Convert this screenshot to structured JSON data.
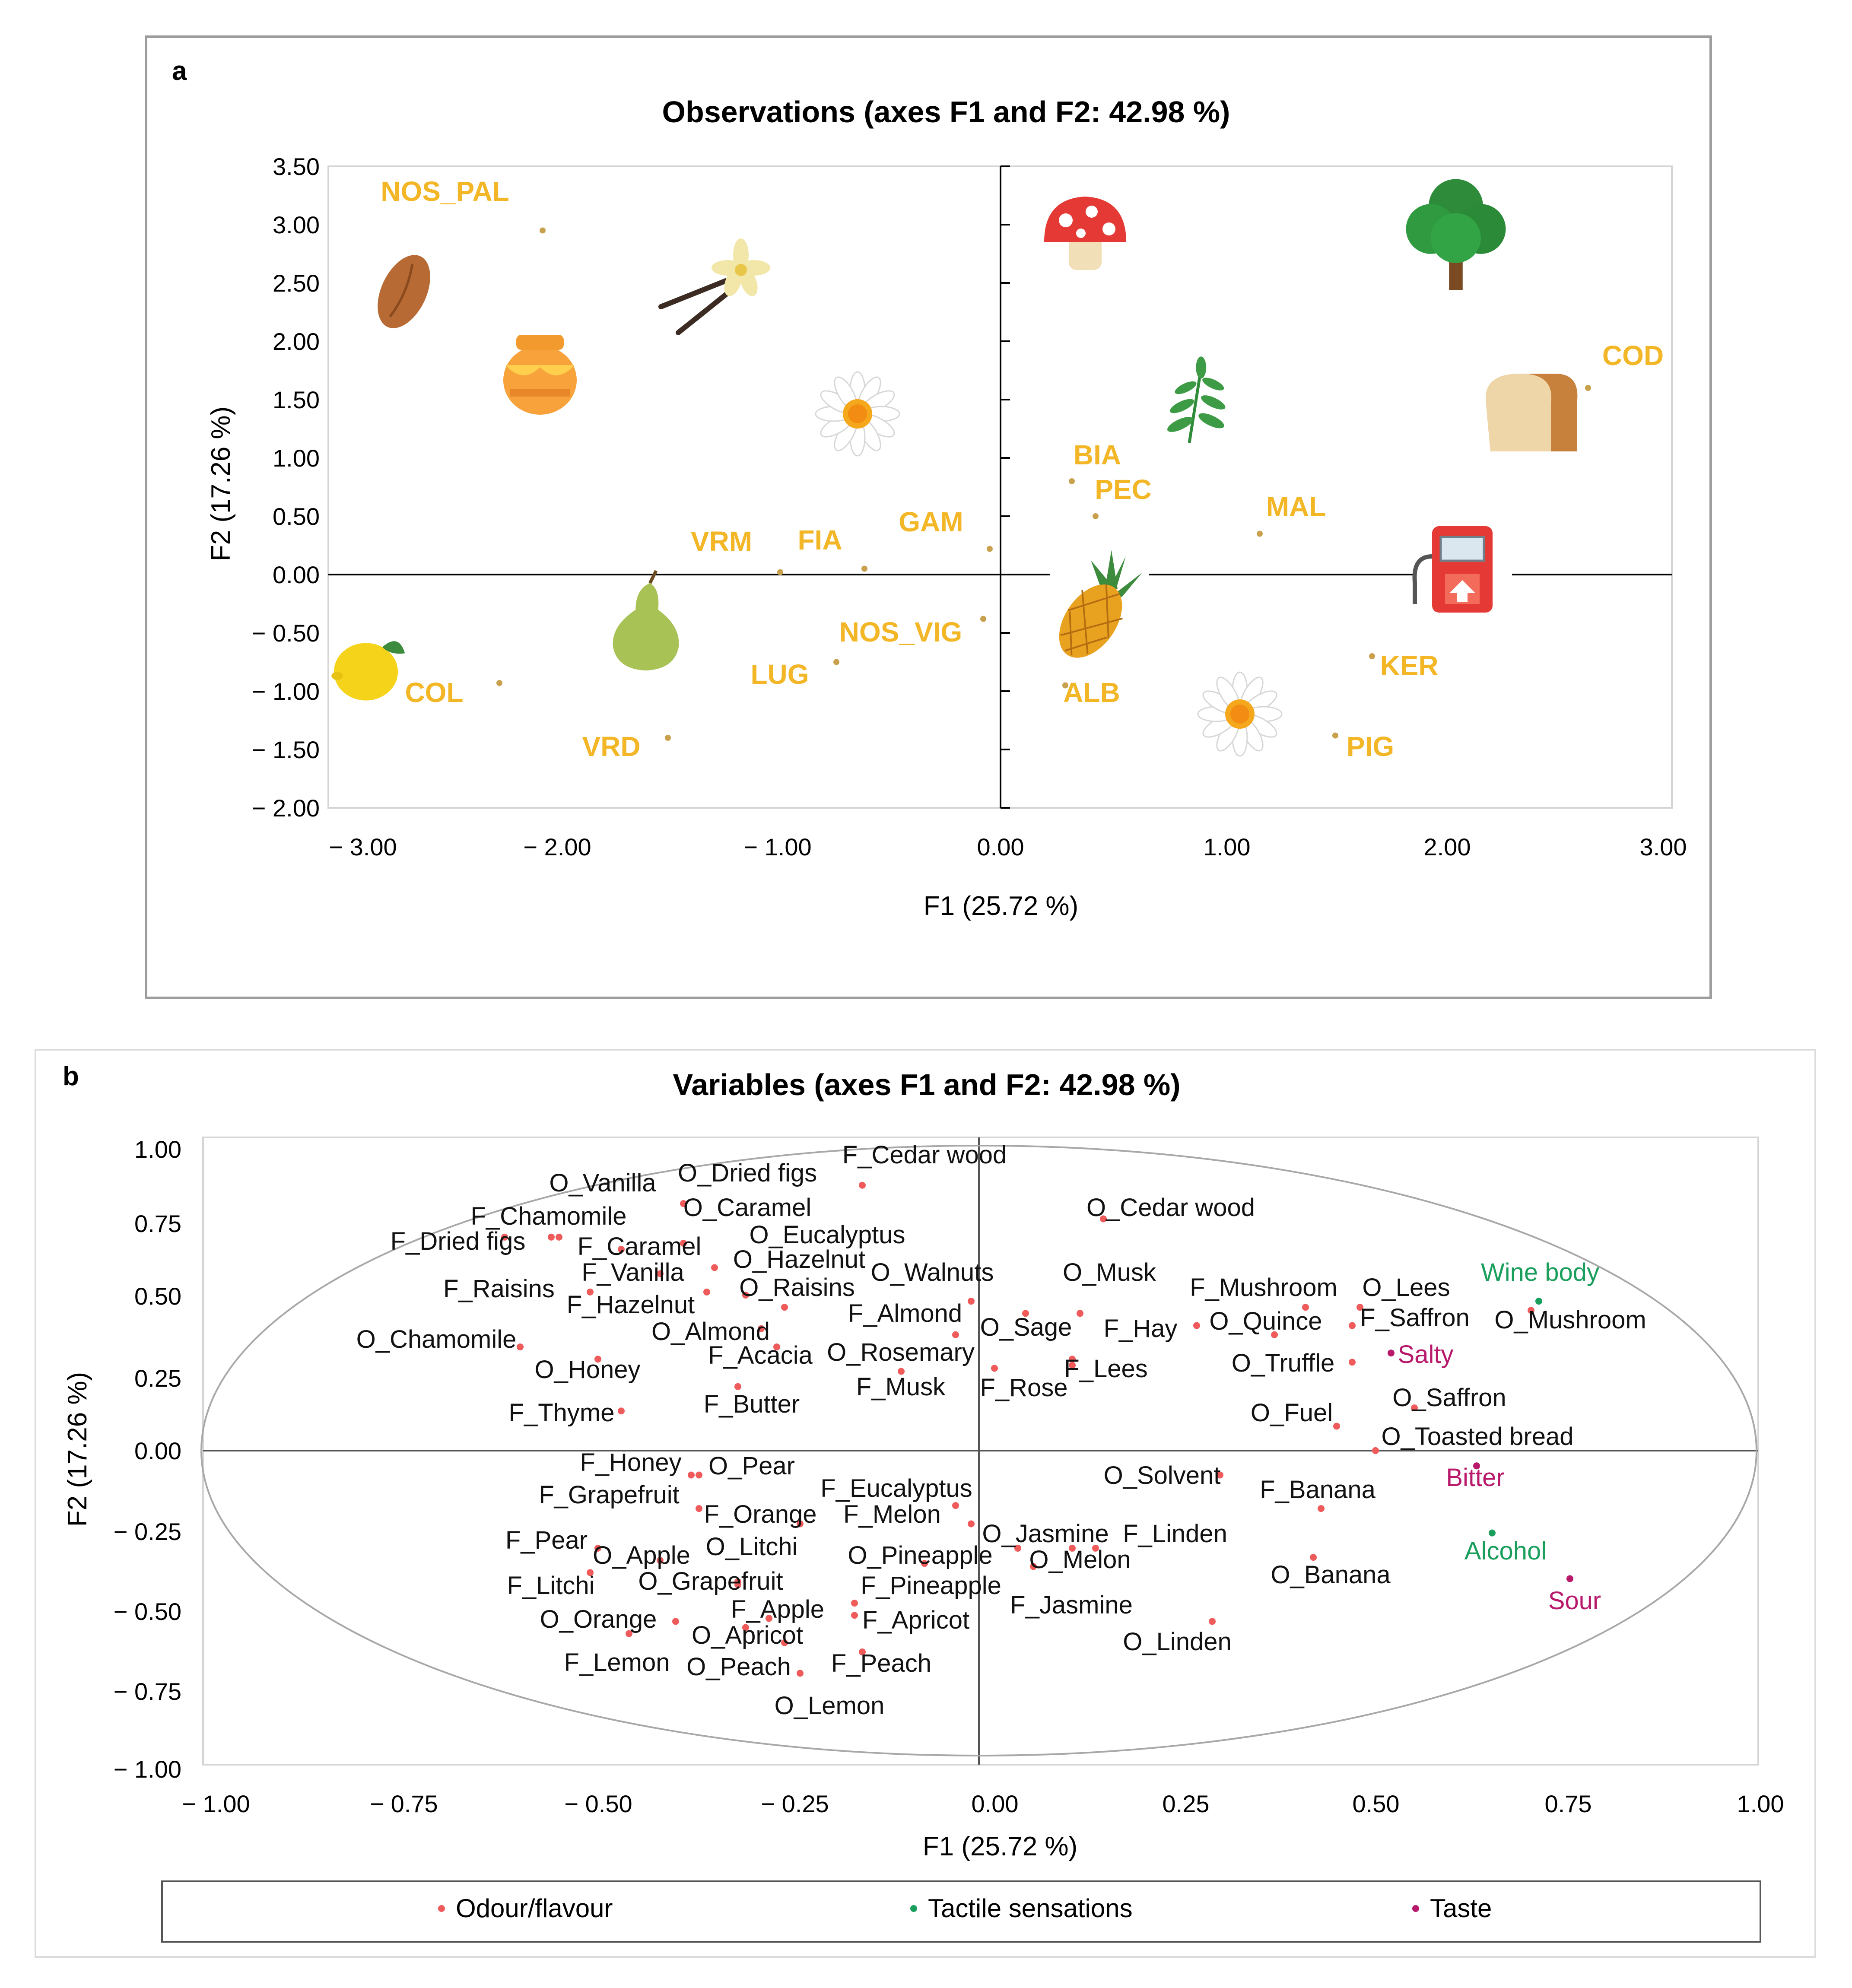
{
  "colors": {
    "observation": "#f2b626",
    "observation_point": "#c9a14e"
  },
  "chart_data": [
    {
      "type": "scatter",
      "panel": "a",
      "title": "Observations (axes F1 and F2: 42.98 %)",
      "xlabel": "F1 (25.72 %)",
      "ylabel": "F2 (17.26 %)",
      "xlim": [
        -3.0,
        3.0
      ],
      "ylim": [
        -2.0,
        3.5
      ],
      "xticks": [
        "− 3.00",
        "− 2.00",
        "− 1.00",
        "0.00",
        "1.00",
        "2.00",
        "3.00"
      ],
      "yticks": [
        "3.50",
        "3.00",
        "2.50",
        "2.00",
        "1.50",
        "1.00",
        "0.50",
        "0.00",
        "− 0.50",
        "− 1.00",
        "− 1.50",
        "− 2.00"
      ],
      "points": [
        {
          "label": "NOS_PAL",
          "x": -2.12,
          "y": 2.95
        },
        {
          "label": "COD",
          "x": 2.72,
          "y": 1.6
        },
        {
          "label": "BIA",
          "x": 0.33,
          "y": 0.8
        },
        {
          "label": "PEC",
          "x": 0.44,
          "y": 0.5
        },
        {
          "label": "MAL",
          "x": 1.2,
          "y": 0.35
        },
        {
          "label": "GAM",
          "x": -0.05,
          "y": 0.22
        },
        {
          "label": "FIA",
          "x": -0.63,
          "y": 0.05
        },
        {
          "label": "VRM",
          "x": -1.02,
          "y": 0.02
        },
        {
          "label": "NOS_VIG",
          "x": -0.08,
          "y": -0.38
        },
        {
          "label": "LUG",
          "x": -0.76,
          "y": -0.75
        },
        {
          "label": "COL",
          "x": -2.32,
          "y": -0.93
        },
        {
          "label": "VRD",
          "x": -1.54,
          "y": -1.4
        },
        {
          "label": "ALB",
          "x": 0.3,
          "y": -0.95
        },
        {
          "label": "KER",
          "x": 1.72,
          "y": -0.7
        },
        {
          "label": "PIG",
          "x": 1.55,
          "y": -1.38
        }
      ],
      "icons": [
        "almond-icon",
        "vanilla-icon",
        "honey-icon",
        "chamomile-icon",
        "mushroom-icon",
        "tree-icon",
        "leaf-icon",
        "bread-icon",
        "fuel-pump-icon",
        "pineapple-icon",
        "pear-icon",
        "lemon-icon",
        "chamomile-icon"
      ]
    },
    {
      "type": "scatter",
      "panel": "b",
      "title": "Variables (axes F1 and F2: 42.98 %)",
      "xlabel": "F1 (25.72 %)",
      "ylabel": "F2 (17.26 %)",
      "xlim": [
        -1.0,
        1.0
      ],
      "ylim": [
        -1.0,
        1.0
      ],
      "xticks": [
        "− 1.00",
        "− 0.75",
        "− 0.50",
        "− 0.25",
        "0.00",
        "0.25",
        "0.50",
        "0.75",
        "1.00"
      ],
      "yticks": [
        "1.00",
        "0.75",
        "0.50",
        "0.25",
        "0.00",
        "− 0.25",
        "− 0.50",
        "− 0.75",
        "− 1.00"
      ],
      "legend": [
        {
          "label": "Odour/flavour",
          "color": "#ef5a5a"
        },
        {
          "label": "Tactile sensations",
          "color": "#1a9e5c"
        },
        {
          "label": "Taste",
          "color": "#b8196b"
        }
      ],
      "points": [
        {
          "label": "F_Cedar wood",
          "x": -0.15,
          "y": 0.87,
          "group": "Odour/flavour"
        },
        {
          "label": "O_Vanilla",
          "x": -0.55,
          "y": 0.7,
          "group": "Odour/flavour"
        },
        {
          "label": "O_Dried figs",
          "x": -0.38,
          "y": 0.81,
          "group": "Odour/flavour"
        },
        {
          "label": "O_Caramel",
          "x": -0.38,
          "y": 0.68,
          "group": "Odour/flavour"
        },
        {
          "label": "F_Chamomile",
          "x": -0.54,
          "y": 0.7,
          "group": "Odour/flavour"
        },
        {
          "label": "F_Dried figs",
          "x": -0.61,
          "y": 0.7,
          "group": "Odour/flavour"
        },
        {
          "label": "F_Caramel",
          "x": -0.46,
          "y": 0.66,
          "group": "Odour/flavour"
        },
        {
          "label": "O_Eucalyptus",
          "x": -0.34,
          "y": 0.6,
          "group": "Odour/flavour"
        },
        {
          "label": "F_Vanilla",
          "x": -0.41,
          "y": 0.58,
          "group": "Odour/flavour"
        },
        {
          "label": "O_Hazelnut",
          "x": -0.3,
          "y": 0.51,
          "group": "Odour/flavour"
        },
        {
          "label": "O_Walnuts",
          "x": -0.01,
          "y": 0.49,
          "group": "Odour/flavour"
        },
        {
          "label": "O_Raisins",
          "x": -0.25,
          "y": 0.47,
          "group": "Odour/flavour"
        },
        {
          "label": "F_Raisins",
          "x": -0.5,
          "y": 0.52,
          "group": "Odour/flavour"
        },
        {
          "label": "F_Hazelnut",
          "x": -0.35,
          "y": 0.52,
          "group": "Odour/flavour"
        },
        {
          "label": "F_Almond",
          "x": -0.03,
          "y": 0.38,
          "group": "Odour/flavour"
        },
        {
          "label": "O_Musk",
          "x": 0.13,
          "y": 0.45,
          "group": "Odour/flavour"
        },
        {
          "label": "O_Almond",
          "x": -0.28,
          "y": 0.4,
          "group": "Odour/flavour"
        },
        {
          "label": "O_Chamomile",
          "x": -0.59,
          "y": 0.34,
          "group": "Odour/flavour"
        },
        {
          "label": "F_Acacia",
          "x": -0.26,
          "y": 0.34,
          "group": "Odour/flavour"
        },
        {
          "label": "O_Rosemary",
          "x": -0.1,
          "y": 0.26,
          "group": "Odour/flavour"
        },
        {
          "label": "O_Sage",
          "x": 0.06,
          "y": 0.45,
          "group": "Odour/flavour"
        },
        {
          "label": "F_Hay",
          "x": 0.28,
          "y": 0.41,
          "group": "Odour/flavour"
        },
        {
          "label": "O_Honey",
          "x": -0.49,
          "y": 0.3,
          "group": "Odour/flavour"
        },
        {
          "label": "F_Musk",
          "x": 0.02,
          "y": 0.27,
          "group": "Odour/flavour"
        },
        {
          "label": "F_Rose",
          "x": 0.12,
          "y": 0.28,
          "group": "Odour/flavour"
        },
        {
          "label": "F_Lees",
          "x": 0.12,
          "y": 0.3,
          "group": "Odour/flavour"
        },
        {
          "label": "F_Thyme",
          "x": -0.46,
          "y": 0.13,
          "group": "Odour/flavour"
        },
        {
          "label": "F_Butter",
          "x": -0.31,
          "y": 0.21,
          "group": "Odour/flavour"
        },
        {
          "label": "F_Mushroom",
          "x": 0.42,
          "y": 0.47,
          "group": "Odour/flavour"
        },
        {
          "label": "O_Lees",
          "x": 0.49,
          "y": 0.47,
          "group": "Odour/flavour"
        },
        {
          "label": "O_Quince",
          "x": 0.38,
          "y": 0.38,
          "group": "Odour/flavour"
        },
        {
          "label": "F_Saffron",
          "x": 0.48,
          "y": 0.41,
          "group": "Odour/flavour"
        },
        {
          "label": "O_Truffle",
          "x": 0.48,
          "y": 0.29,
          "group": "Odour/flavour"
        },
        {
          "label": "O_Fuel",
          "x": 0.46,
          "y": 0.08,
          "group": "Odour/flavour"
        },
        {
          "label": "O_Saffron",
          "x": 0.56,
          "y": 0.14,
          "group": "Odour/flavour"
        },
        {
          "label": "O_Toasted bread",
          "x": 0.51,
          "y": 0.0,
          "group": "Odour/flavour"
        },
        {
          "label": "O_Cedar wood",
          "x": 0.16,
          "y": 0.76,
          "group": "Odour/flavour"
        },
        {
          "label": "O_Mushroom",
          "x": 0.71,
          "y": 0.46,
          "group": "Odour/flavour"
        },
        {
          "label": "F_Honey",
          "x": -0.36,
          "y": -0.08,
          "group": "Odour/flavour"
        },
        {
          "label": "O_Pear",
          "x": -0.37,
          "y": -0.08,
          "group": "Odour/flavour"
        },
        {
          "label": "F_Eucalyptus",
          "x": -0.03,
          "y": -0.18,
          "group": "Odour/flavour"
        },
        {
          "label": "F_Grapefruit",
          "x": -0.36,
          "y": -0.19,
          "group": "Odour/flavour"
        },
        {
          "label": "F_Orange",
          "x": -0.23,
          "y": -0.24,
          "group": "Odour/flavour"
        },
        {
          "label": "F_Melon",
          "x": -0.01,
          "y": -0.24,
          "group": "Odour/flavour"
        },
        {
          "label": "O_Solvent",
          "x": 0.31,
          "y": -0.08,
          "group": "Odour/flavour"
        },
        {
          "label": "F_Banana",
          "x": 0.44,
          "y": -0.19,
          "group": "Odour/flavour"
        },
        {
          "label": "F_Pear",
          "x": -0.49,
          "y": -0.32,
          "group": "Odour/flavour"
        },
        {
          "label": "O_Apple",
          "x": -0.41,
          "y": -0.36,
          "group": "Odour/flavour"
        },
        {
          "label": "O_Litchi",
          "x": -0.31,
          "y": -0.43,
          "group": "Odour/flavour"
        },
        {
          "label": "O_Jasmine",
          "x": 0.05,
          "y": -0.32,
          "group": "Odour/flavour"
        },
        {
          "label": "O_Pineapple",
          "x": -0.07,
          "y": -0.37,
          "group": "Odour/flavour"
        },
        {
          "label": "F_Linden",
          "x": 0.15,
          "y": -0.32,
          "group": "Odour/flavour"
        },
        {
          "label": "O_Melon",
          "x": 0.12,
          "y": -0.32,
          "group": "Odour/flavour"
        },
        {
          "label": "O_Banana",
          "x": 0.43,
          "y": -0.35,
          "group": "Odour/flavour"
        },
        {
          "label": "F_Litchi",
          "x": -0.5,
          "y": -0.4,
          "group": "Odour/flavour"
        },
        {
          "label": "O_Grapefruit",
          "x": -0.31,
          "y": -0.44,
          "group": "Odour/flavour"
        },
        {
          "label": "F_Pineapple",
          "x": -0.16,
          "y": -0.5,
          "group": "Odour/flavour"
        },
        {
          "label": "F_Jasmine",
          "x": 0.07,
          "y": -0.38,
          "group": "Odour/flavour"
        },
        {
          "label": "O_Orange",
          "x": -0.39,
          "y": -0.56,
          "group": "Odour/flavour"
        },
        {
          "label": "F_Apple",
          "x": -0.27,
          "y": -0.55,
          "group": "Odour/flavour"
        },
        {
          "label": "F_Apricot",
          "x": -0.16,
          "y": -0.54,
          "group": "Odour/flavour"
        },
        {
          "label": "O_Apricot",
          "x": -0.3,
          "y": -0.58,
          "group": "Odour/flavour"
        },
        {
          "label": "O_Linden",
          "x": 0.3,
          "y": -0.56,
          "group": "Odour/flavour"
        },
        {
          "label": "F_Lemon",
          "x": -0.45,
          "y": -0.6,
          "group": "Odour/flavour"
        },
        {
          "label": "O_Peach",
          "x": -0.25,
          "y": -0.63,
          "group": "Odour/flavour"
        },
        {
          "label": "F_Peach",
          "x": -0.15,
          "y": -0.66,
          "group": "Odour/flavour"
        },
        {
          "label": "O_Lemon",
          "x": -0.23,
          "y": -0.73,
          "group": "Odour/flavour"
        },
        {
          "label": "Wine body",
          "x": 0.72,
          "y": 0.49,
          "group": "Tactile sensations"
        },
        {
          "label": "Alcohol",
          "x": 0.66,
          "y": -0.27,
          "group": "Tactile sensations"
        },
        {
          "label": "Salty",
          "x": 0.53,
          "y": 0.32,
          "group": "Taste"
        },
        {
          "label": "Bitter",
          "x": 0.64,
          "y": -0.05,
          "group": "Taste"
        },
        {
          "label": "Sour",
          "x": 0.76,
          "y": -0.42,
          "group": "Taste"
        }
      ]
    }
  ]
}
